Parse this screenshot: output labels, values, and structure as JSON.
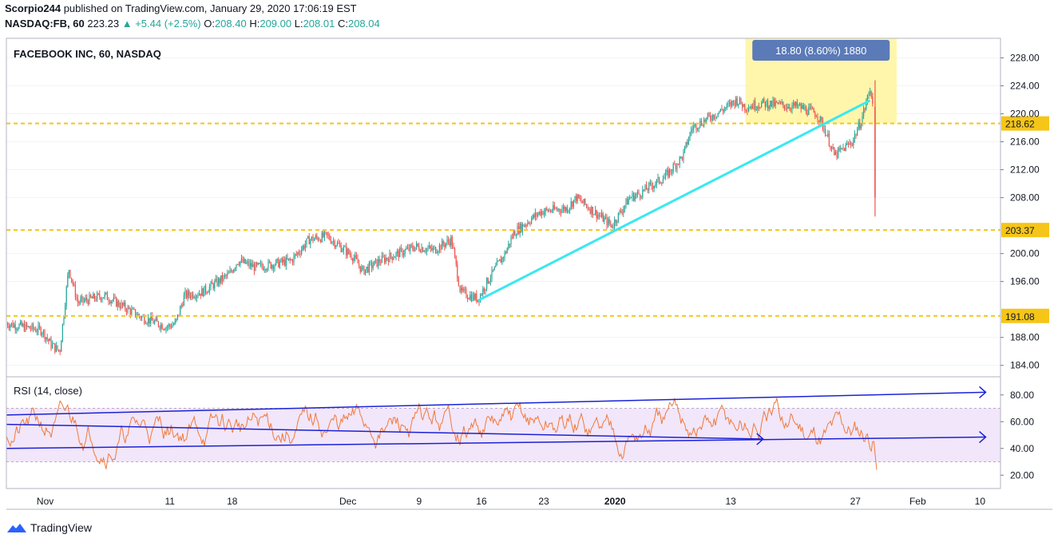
{
  "header": {
    "publisher_line": "Scorpio244 published on TradingView.com, January 29, 2020 17:06:19 EST",
    "user": "Scorpio244",
    "rest": " published on TradingView.com, January 29, 2020 17:06:19 EST",
    "symbol": "NASDAQ:FB, 60",
    "last": "223.23",
    "change": "+5.44 (+2.5%)",
    "o_label": "O:",
    "o": "208.40",
    "h_label": "H:",
    "h": "209.00",
    "l_label": "L:",
    "l": "208.01",
    "c_label": "C:",
    "c": "208.04"
  },
  "footer": {
    "brand": "TradingView"
  },
  "colors": {
    "accent": "#2962ff",
    "hline": "#f5c518",
    "trend": "#3ae8f0",
    "rsi_line": "#ef7a3b",
    "rsi_band": "#e9d6f7",
    "up": "#26a69a",
    "down": "#ef5350"
  },
  "chart_data": {
    "type": "candlestick",
    "title": "FACEBOOK INC, 60, NASDAQ",
    "price_axis": {
      "ticks": [
        "228.00",
        "224.00",
        "220.00",
        "216.00",
        "212.00",
        "208.00",
        "200.00",
        "196.00",
        "188.00",
        "184.00"
      ],
      "ylim": [
        182.6,
        230.8
      ]
    },
    "time_axis": {
      "ticks": [
        "Nov",
        "11",
        "18",
        "Dec",
        "9",
        "16",
        "23",
        "2020",
        "13",
        "27",
        "Feb",
        "10"
      ]
    },
    "horizontal_levels": [
      {
        "label": "218.62",
        "value": 218.62
      },
      {
        "label": "203.37",
        "value": 203.37
      },
      {
        "label": "191.08",
        "value": 191.08
      }
    ],
    "measure_box": {
      "label": "18.80 (8.60%) 1880",
      "from": 218.62,
      "to": 230.8
    },
    "trendline": {
      "from_date": "2019-12-16",
      "from_price": 193.3,
      "to_date": "2020-01-29",
      "to_price": 221.9
    },
    "path": [
      [
        "2019-10-24",
        190.0
      ],
      [
        "2019-10-28",
        189.0
      ],
      [
        "2019-10-29",
        187.0
      ],
      [
        "2019-10-30",
        186.0
      ],
      [
        "2019-10-31",
        198.0
      ],
      [
        "2019-11-01",
        193.0
      ],
      [
        "2019-11-04",
        194.0
      ],
      [
        "2019-11-06",
        192.5
      ],
      [
        "2019-11-08",
        191.0
      ],
      [
        "2019-11-11",
        189.5
      ],
      [
        "2019-11-12",
        190.0
      ],
      [
        "2019-11-13",
        194.0
      ],
      [
        "2019-11-15",
        194.5
      ],
      [
        "2019-11-18",
        197.0
      ],
      [
        "2019-11-19",
        199.0
      ],
      [
        "2019-11-21",
        198.0
      ],
      [
        "2019-11-25",
        199.0
      ],
      [
        "2019-11-27",
        202.0
      ],
      [
        "2019-11-29",
        202.5
      ],
      [
        "2019-12-02",
        199.5
      ],
      [
        "2019-12-03",
        197.5
      ],
      [
        "2019-12-05",
        199.0
      ],
      [
        "2019-12-09",
        201.0
      ],
      [
        "2019-12-11",
        200.5
      ],
      [
        "2019-12-13",
        202.0
      ],
      [
        "2019-12-14",
        194.5
      ],
      [
        "2019-12-16",
        193.5
      ],
      [
        "2019-12-17",
        196.0
      ],
      [
        "2019-12-19",
        200.0
      ],
      [
        "2019-12-20",
        203.0
      ],
      [
        "2019-12-23",
        206.0
      ],
      [
        "2019-12-26",
        206.5
      ],
      [
        "2019-12-27",
        208.0
      ],
      [
        "2019-12-30",
        205.0
      ],
      [
        "2019-12-31",
        204.0
      ],
      [
        "2020-01-02",
        208.0
      ],
      [
        "2020-01-03",
        208.5
      ],
      [
        "2020-01-06",
        211.0
      ],
      [
        "2020-01-08",
        214.0
      ],
      [
        "2020-01-09",
        218.0
      ],
      [
        "2020-01-13",
        221.0
      ],
      [
        "2020-01-14",
        222.0
      ],
      [
        "2020-01-15",
        221.0
      ],
      [
        "2020-01-17",
        221.5
      ],
      [
        "2020-01-21",
        221.0
      ],
      [
        "2020-01-23",
        220.0
      ],
      [
        "2020-01-24",
        217.5
      ],
      [
        "2020-01-25",
        214.0
      ],
      [
        "2020-01-27",
        216.0
      ],
      [
        "2020-01-28",
        219.0
      ],
      [
        "2020-01-29",
        223.5
      ],
      [
        "2020-01-29T12",
        221.0
      ],
      [
        "2020-01-29T18",
        208.04
      ]
    ],
    "rsi": {
      "label": "RSI (14, close)",
      "ticks": [
        "80.00",
        "60.00",
        "40.00",
        "20.00"
      ],
      "ylim": [
        10,
        90
      ],
      "band": [
        30,
        70
      ],
      "lines": [
        {
          "from_date": "2019-10-24",
          "from": 65,
          "to_date": "2020-02-11",
          "to": 82
        },
        {
          "from_date": "2019-10-24",
          "from": 40,
          "to_date": "2020-02-11",
          "to": 48.5
        },
        {
          "from_date": "2019-10-24",
          "from": 58,
          "to_date": "2020-01-17",
          "to": 47
        }
      ]
    }
  }
}
